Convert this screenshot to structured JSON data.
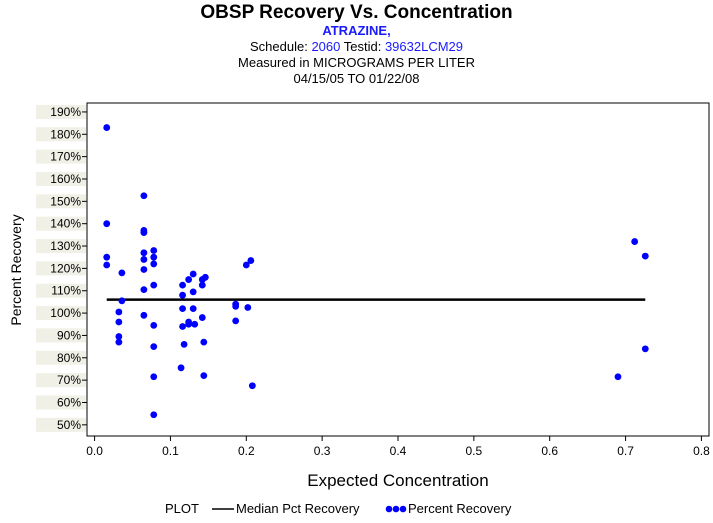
{
  "header": {
    "title": "OBSP Recovery Vs. Concentration",
    "analyte": "ATRAZINE,",
    "schedule_label": "Schedule:",
    "schedule": "2060",
    "testid_label": "Testid:",
    "testid": "39632LCM29",
    "measured": "Measured in  MICROGRAMS PER LITER",
    "date_range": "04/15/05 TO 01/22/08"
  },
  "legend": {
    "plot_label": "PLOT",
    "median_label": "Median Pct Recovery",
    "percent_label": "Percent Recovery"
  },
  "colors": {
    "points": "#0000ff",
    "median": "#000000",
    "band": "#f0f0e6",
    "blue_text": "#1a1aff"
  },
  "chart_data": {
    "type": "scatter",
    "title": "OBSP Recovery Vs. Concentration",
    "xlabel": "Expected Concentration",
    "ylabel": "Percent Recovery",
    "xlim": [
      -0.01,
      0.81
    ],
    "ylim": [
      45,
      194
    ],
    "x_ticks": [
      0.0,
      0.1,
      0.2,
      0.3,
      0.4,
      0.5,
      0.6,
      0.7,
      0.8
    ],
    "x_tick_labels": [
      "0.0",
      "0.1",
      "0.2",
      "0.3",
      "0.4",
      "0.5",
      "0.6",
      "0.7",
      "0.8"
    ],
    "y_ticks": [
      50,
      60,
      70,
      80,
      90,
      100,
      110,
      120,
      130,
      140,
      150,
      160,
      170,
      180,
      190
    ],
    "y_tick_labels": [
      "50%",
      "60%",
      "70%",
      "80%",
      "90%",
      "100%",
      "110%",
      "120%",
      "130%",
      "140%",
      "150%",
      "160%",
      "170%",
      "180%",
      "190%"
    ],
    "series": [
      {
        "name": "Percent Recovery",
        "points": [
          [
            0.016,
            183
          ],
          [
            0.016,
            140
          ],
          [
            0.016,
            125
          ],
          [
            0.016,
            121.5
          ],
          [
            0.032,
            100.5
          ],
          [
            0.032,
            96
          ],
          [
            0.032,
            89.5
          ],
          [
            0.032,
            87
          ],
          [
            0.036,
            118
          ],
          [
            0.036,
            105.5
          ],
          [
            0.065,
            152.5
          ],
          [
            0.065,
            137
          ],
          [
            0.065,
            136
          ],
          [
            0.065,
            127
          ],
          [
            0.065,
            124
          ],
          [
            0.065,
            119.5
          ],
          [
            0.065,
            110.5
          ],
          [
            0.065,
            99
          ],
          [
            0.078,
            128
          ],
          [
            0.078,
            125
          ],
          [
            0.078,
            122
          ],
          [
            0.078,
            112.5
          ],
          [
            0.078,
            94.5
          ],
          [
            0.078,
            85
          ],
          [
            0.078,
            71.5
          ],
          [
            0.078,
            54.5
          ],
          [
            0.114,
            75.5
          ],
          [
            0.116,
            112.5
          ],
          [
            0.116,
            108
          ],
          [
            0.116,
            102
          ],
          [
            0.116,
            94
          ],
          [
            0.118,
            86
          ],
          [
            0.124,
            115
          ],
          [
            0.124,
            96
          ],
          [
            0.124,
            95
          ],
          [
            0.13,
            117.5
          ],
          [
            0.13,
            109.5
          ],
          [
            0.13,
            102
          ],
          [
            0.132,
            95
          ],
          [
            0.142,
            115
          ],
          [
            0.142,
            112.5
          ],
          [
            0.142,
            98
          ],
          [
            0.144,
            87
          ],
          [
            0.144,
            72
          ],
          [
            0.146,
            116
          ],
          [
            0.186,
            104
          ],
          [
            0.186,
            103
          ],
          [
            0.186,
            96.5
          ],
          [
            0.2,
            121.5
          ],
          [
            0.202,
            102.5
          ],
          [
            0.206,
            123.5
          ],
          [
            0.208,
            67.5
          ],
          [
            0.69,
            71.5
          ],
          [
            0.712,
            132
          ],
          [
            0.726,
            125.5
          ],
          [
            0.726,
            84
          ]
        ]
      }
    ],
    "median": {
      "name": "Median Pct Recovery",
      "value": 106,
      "x_start": 0.016,
      "x_end": 0.726
    },
    "legend_position": "bottom"
  }
}
